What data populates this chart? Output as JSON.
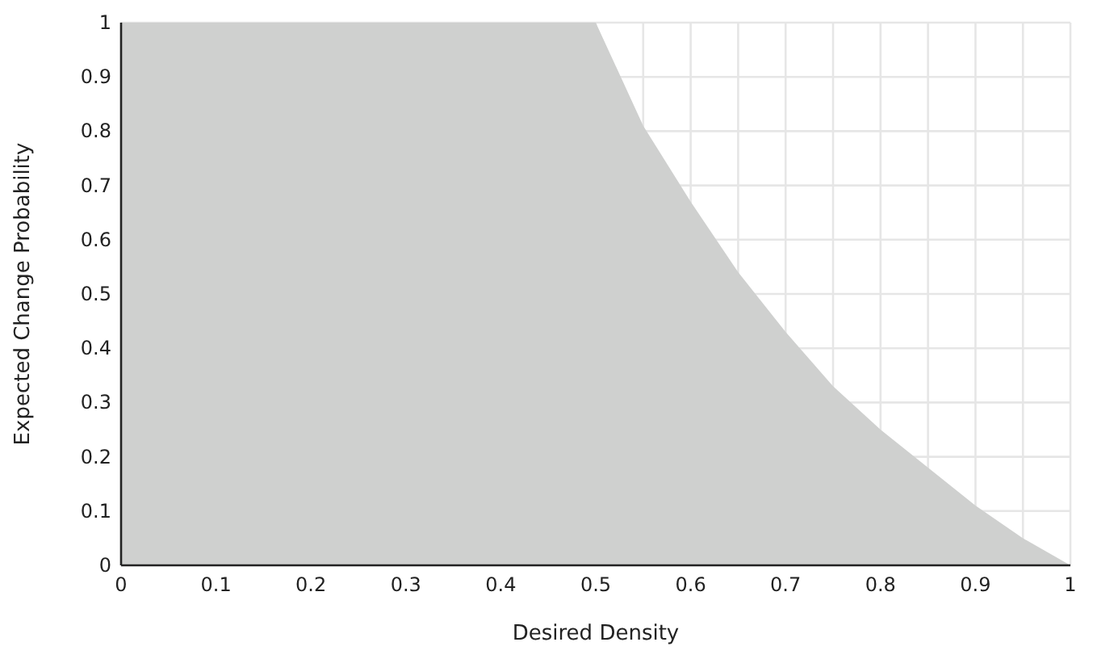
{
  "chart_data": {
    "type": "area",
    "xlabel": "Desired Density",
    "ylabel": "Expected Change Probability",
    "x": [
      0,
      0.1,
      0.2,
      0.3,
      0.4,
      0.5,
      0.55,
      0.6,
      0.65,
      0.7,
      0.75,
      0.8,
      0.85,
      0.9,
      0.95,
      1
    ],
    "series": [
      {
        "color": "#cfd0cf",
        "values": [
          1,
          1,
          1,
          1,
          1,
          1,
          0.81,
          0.67,
          0.54,
          0.43,
          0.33,
          0.25,
          0.18,
          0.11,
          0.05,
          0
        ]
      }
    ],
    "xlim": [
      0,
      1
    ],
    "ylim": [
      0,
      1
    ],
    "xticks": [
      0,
      0.1,
      0.2,
      0.3,
      0.4,
      0.5,
      0.6,
      0.7,
      0.8,
      0.9,
      1
    ],
    "yticks": [
      0,
      0.1,
      0.2,
      0.3,
      0.4,
      0.5,
      0.6,
      0.7,
      0.8,
      0.9,
      1
    ],
    "grid": true
  }
}
